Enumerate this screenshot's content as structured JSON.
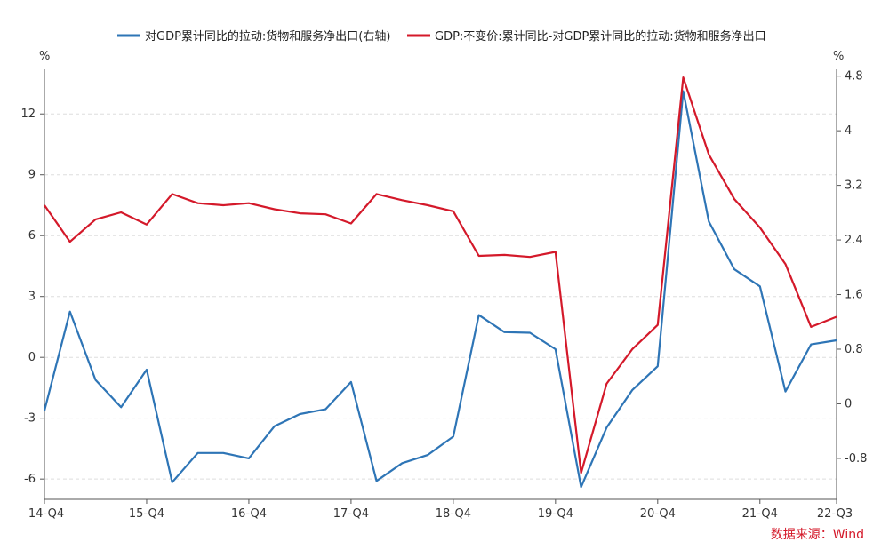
{
  "chart_data": {
    "type": "line",
    "x": [
      "14-Q4",
      "15-Q1",
      "15-Q2",
      "15-Q3",
      "15-Q4",
      "16-Q1",
      "16-Q2",
      "16-Q3",
      "16-Q4",
      "17-Q1",
      "17-Q2",
      "17-Q3",
      "17-Q4",
      "18-Q1",
      "18-Q2",
      "18-Q3",
      "18-Q4",
      "19-Q1",
      "19-Q2",
      "19-Q3",
      "19-Q4",
      "20-Q1",
      "20-Q2",
      "20-Q3",
      "20-Q4",
      "21-Q1",
      "21-Q2",
      "21-Q3",
      "21-Q4",
      "22-Q1",
      "22-Q2",
      "22-Q3"
    ],
    "x_tick_labels": [
      "14-Q4",
      "15-Q4",
      "16-Q4",
      "17-Q4",
      "18-Q4",
      "19-Q4",
      "20-Q4",
      "21-Q4",
      "22-Q3"
    ],
    "left_axis": {
      "unit": "%",
      "ylim": [
        -7,
        14.2
      ],
      "ticks": [
        "12",
        "9",
        "6",
        "3",
        "0",
        "-3",
        "-6"
      ]
    },
    "right_axis": {
      "unit": "%",
      "ylim": [
        -1.4,
        4.9
      ],
      "ticks": [
        "4.8",
        "4",
        "3.2",
        "2.4",
        "1.6",
        "0.8",
        "0",
        "-0.8"
      ]
    },
    "series": [
      {
        "name": "对GDP累计同比的拉动:货物和服务净出口(右轴)",
        "axis": "right",
        "color": "#2e75b6",
        "values": [
          -0.1,
          1.35,
          0.35,
          -0.05,
          0.5,
          -1.15,
          -0.72,
          -0.72,
          -0.8,
          -0.33,
          -0.15,
          -0.08,
          0.32,
          -1.13,
          -0.87,
          -0.75,
          -0.48,
          1.3,
          1.05,
          1.04,
          0.8,
          -1.22,
          -0.35,
          0.2,
          0.55,
          4.58,
          2.67,
          1.97,
          1.72,
          0.18,
          0.87,
          0.93
        ]
      },
      {
        "name": "GDP:不变价:累计同比-对GDP累计同比的拉动:货物和服务净出口",
        "axis": "left",
        "color": "#d4192a",
        "values": [
          7.5,
          5.7,
          6.8,
          7.15,
          6.55,
          8.05,
          7.6,
          7.5,
          7.6,
          7.3,
          7.1,
          7.05,
          6.6,
          8.05,
          7.75,
          7.5,
          7.2,
          5.0,
          5.05,
          4.95,
          5.2,
          -5.7,
          -1.3,
          0.4,
          1.6,
          13.8,
          10.0,
          7.8,
          6.4,
          4.6,
          1.5,
          2.0
        ]
      }
    ],
    "grid": "horizontal-dashed",
    "legend": "top-center",
    "source": "数据来源：Wind"
  }
}
